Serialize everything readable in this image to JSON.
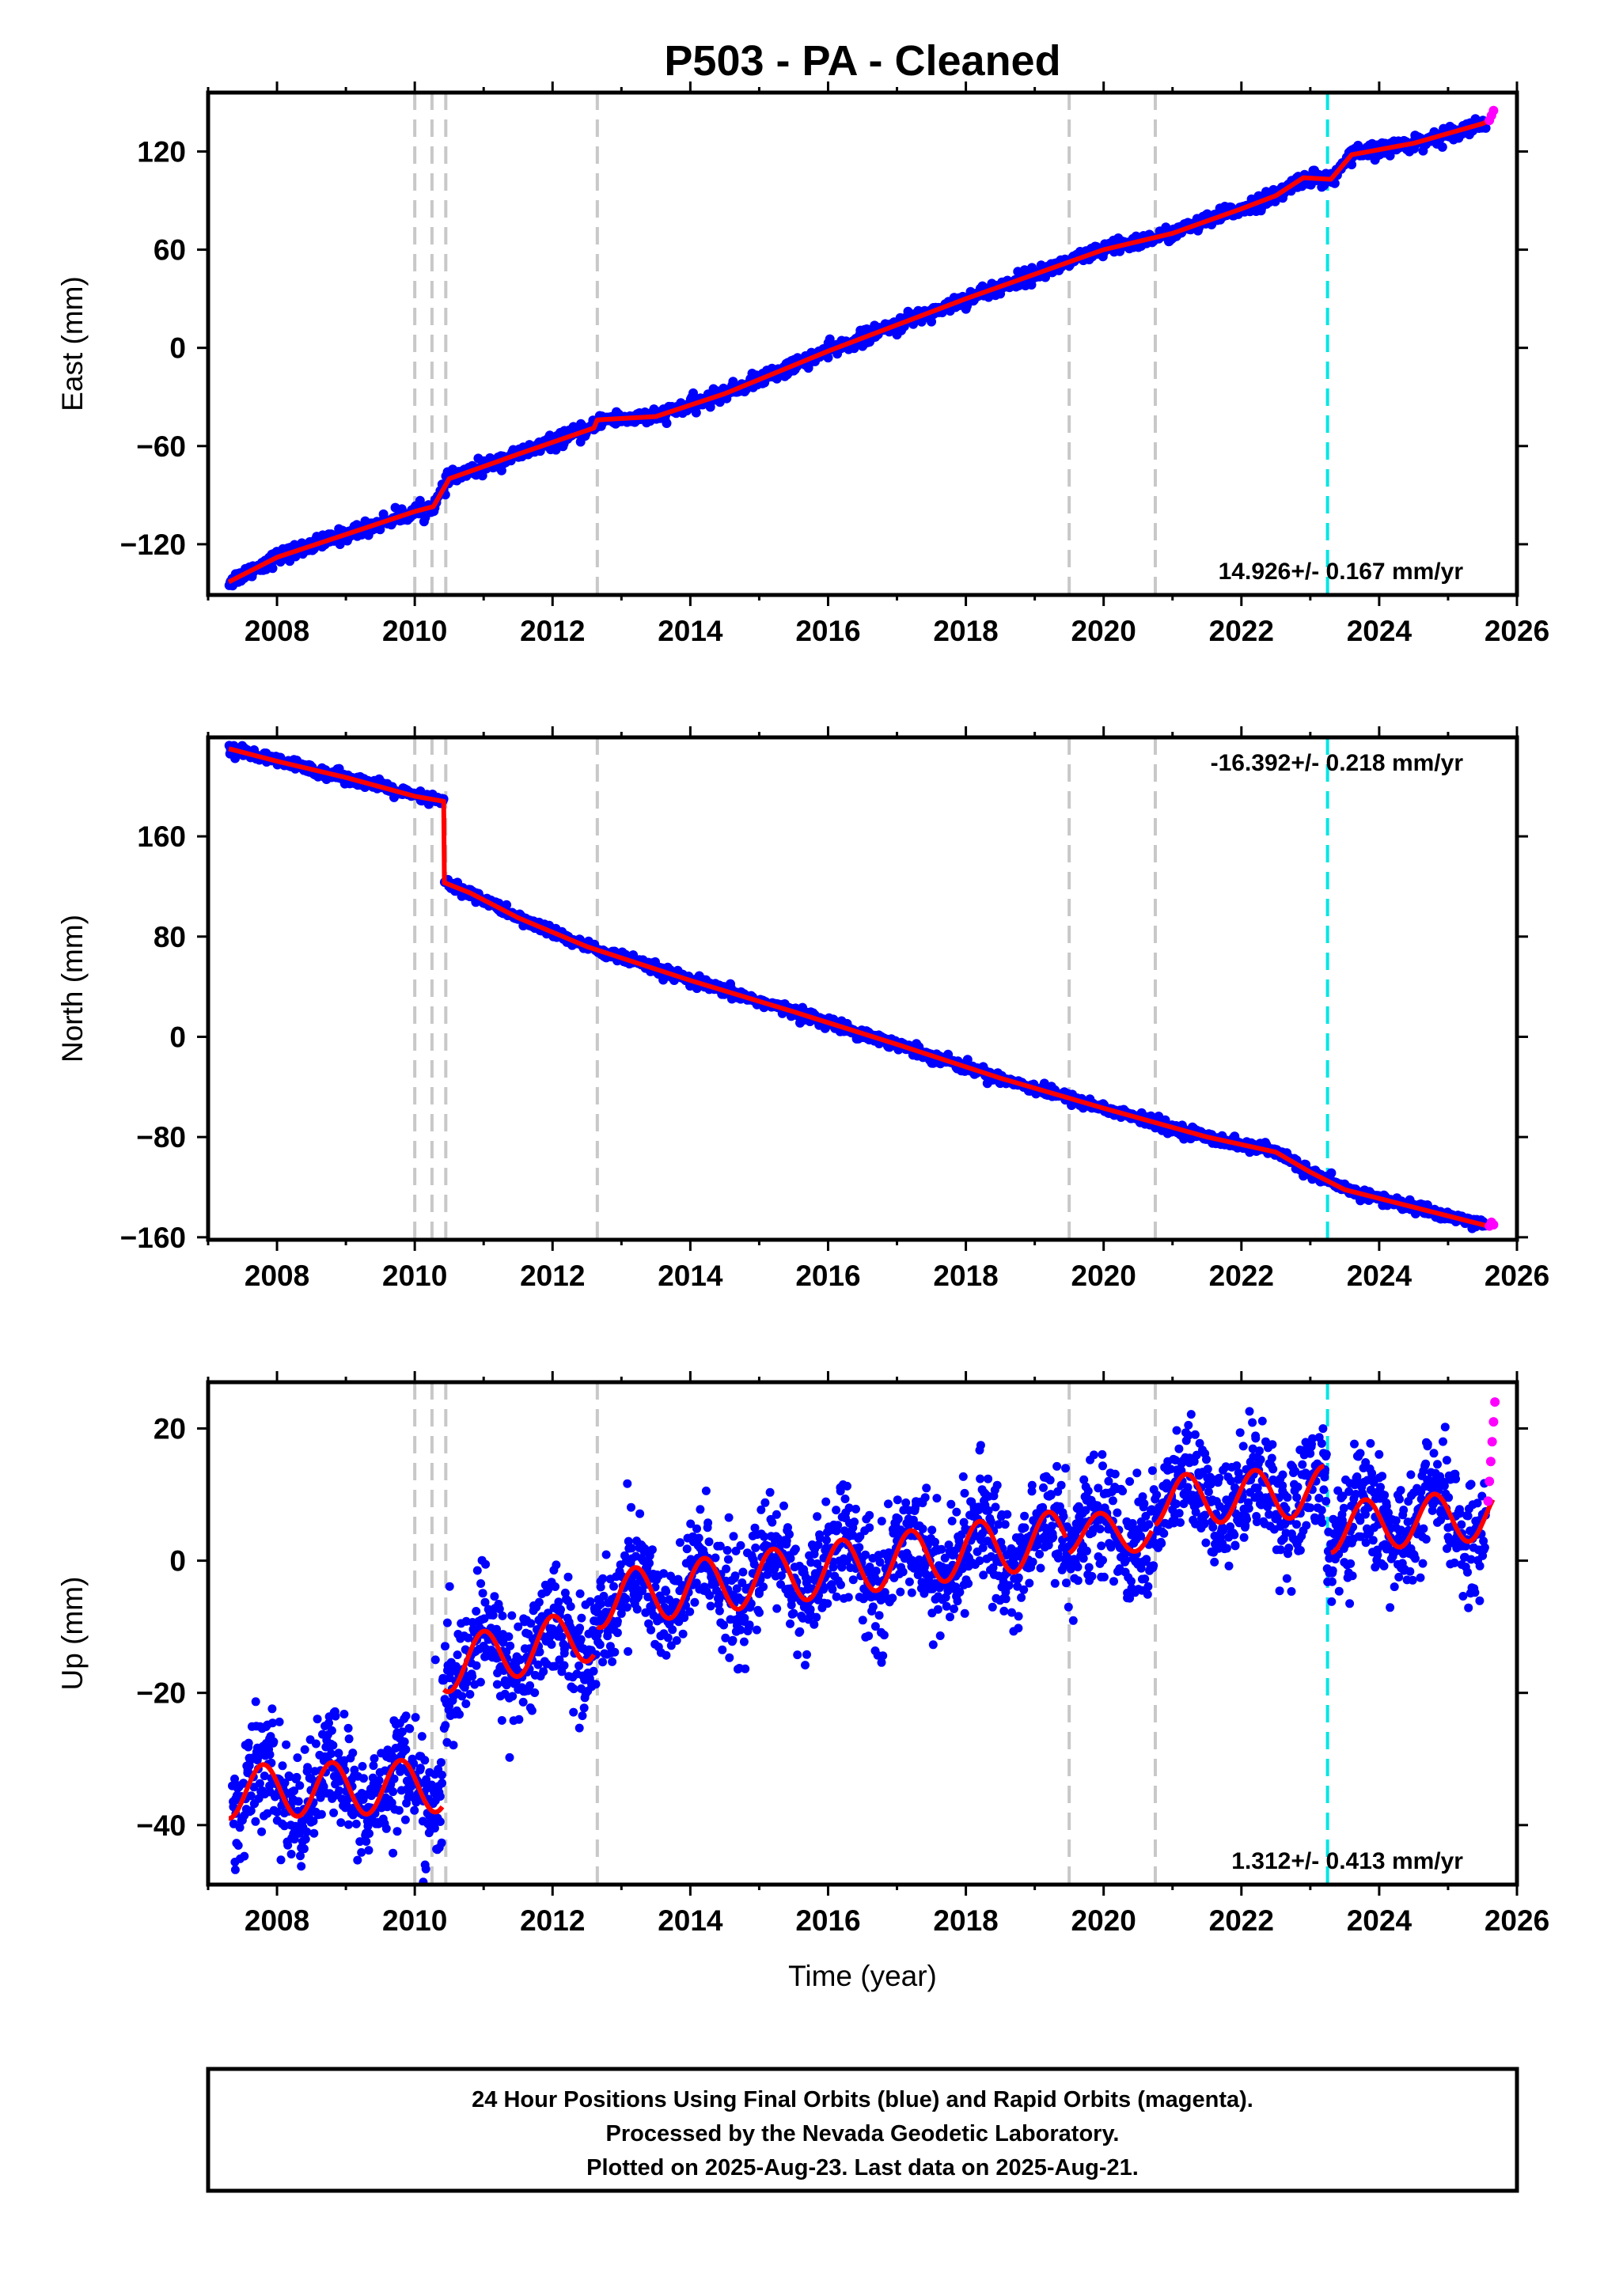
{
  "title": "P503  - PA - Cleaned",
  "colors": {
    "final_orbits": "#0000ff",
    "rapid_orbits": "#ff00ff",
    "model": "#ff0000",
    "event_line": "#c8c8c8",
    "antenna_change_line": "#00e5e5"
  },
  "chart_data": [
    {
      "type": "scatter",
      "panel": "east",
      "ylabel": "East (mm)",
      "xlabel": "",
      "xlim": [
        2007.0,
        2026.0
      ],
      "ylim": [
        -151,
        156
      ],
      "xticks": [
        2008,
        2010,
        2012,
        2014,
        2016,
        2018,
        2020,
        2022,
        2024,
        2026
      ],
      "yticks": [
        -120,
        -60,
        0,
        60,
        120
      ],
      "ytick_labels": [
        "−120",
        "−60",
        "0",
        "60",
        "120"
      ],
      "rate_label": "14.926+/- 0.167 mm/yr",
      "rate_position": "bottom-right",
      "event_lines": [
        2010.0,
        2010.25,
        2010.45,
        2012.65,
        2019.5,
        2020.75
      ],
      "antenna_change_lines": [
        2023.25
      ],
      "model": {
        "x": [
          2007.3,
          2008.0,
          2009.0,
          2010.0,
          2010.27,
          2010.5,
          2011.5,
          2012.6,
          2012.65,
          2013.5,
          2014.5,
          2016.0,
          2018.0,
          2020.0,
          2021.0,
          2022.0,
          2022.5,
          2022.9,
          2023.3,
          2023.6,
          2024.5,
          2025.5,
          2025.65
        ],
        "y": [
          -143,
          -128,
          -114,
          -100,
          -97,
          -80,
          -65,
          -49,
          -44,
          -42,
          -28,
          -2,
          30,
          60,
          70,
          85,
          93,
          104,
          103,
          118,
          125,
          137,
          140
        ]
      },
      "final_orbits": {
        "x": [
          2007.35,
          2007.6,
          2007.9,
          2008.2,
          2008.5,
          2008.8,
          2009.1,
          2009.4,
          2009.7,
          2010.0,
          2010.2,
          2010.4,
          2010.7,
          2011.0,
          2011.4,
          2011.8,
          2012.2,
          2012.6,
          2013.0,
          2013.4,
          2013.8,
          2014.2,
          2014.6,
          2015.0,
          2015.5,
          2016.0,
          2016.5,
          2017.0,
          2017.5,
          2018.0,
          2018.5,
          2019.0,
          2019.5,
          2020.0,
          2020.5,
          2021.0,
          2021.5,
          2022.0,
          2022.4,
          2023.0,
          2023.3,
          2023.6,
          2024.0,
          2024.5,
          2025.0,
          2025.5
        ],
        "y": [
          -141,
          -134,
          -128,
          -124,
          -119,
          -116,
          -113,
          -109,
          -104,
          -99,
          -96,
          -86,
          -75,
          -70,
          -66,
          -60,
          -55,
          -50,
          -45,
          -41,
          -36,
          -31,
          -27,
          -21,
          -14,
          -6,
          1,
          8,
          16,
          26,
          33,
          43,
          50,
          58,
          65,
          71,
          78,
          86,
          90,
          102,
          103,
          112,
          121,
          126,
          132,
          137
        ]
      },
      "rapid_orbits": {
        "x": [
          2025.6,
          2025.63,
          2025.66
        ],
        "y": [
          139,
          142,
          145
        ]
      }
    },
    {
      "type": "scatter",
      "panel": "north",
      "ylabel": "North (mm)",
      "xlabel": "",
      "xlim": [
        2007.0,
        2026.0
      ],
      "ylim": [
        -162,
        239
      ],
      "xticks": [
        2008,
        2010,
        2012,
        2014,
        2016,
        2018,
        2020,
        2022,
        2024,
        2026
      ],
      "yticks": [
        -160,
        -80,
        0,
        80,
        160
      ],
      "ytick_labels": [
        "−160",
        "−80",
        "0",
        "80",
        "160"
      ],
      "rate_label": "-16.392+/- 0.218 mm/yr",
      "rate_position": "top-right",
      "event_lines": [
        2010.0,
        2010.25,
        2010.45,
        2012.65,
        2019.5,
        2020.75
      ],
      "antenna_change_lines": [
        2023.25
      ],
      "model": {
        "x": [
          2007.3,
          2008.0,
          2009.0,
          2010.0,
          2010.42,
          2010.43,
          2010.8,
          2011.5,
          2012.5,
          2014.0,
          2015.5,
          2017.0,
          2018.5,
          2020.0,
          2021.5,
          2022.5,
          2023.0,
          2023.5,
          2024.5,
          2025.65
        ],
        "y": [
          230,
          220,
          207,
          192,
          188,
          123,
          115,
          95,
          72,
          45,
          20,
          -6,
          -33,
          -57,
          -80,
          -92,
          -108,
          -122,
          -136,
          -152
        ]
      },
      "final_orbits": {
        "x": [
          2007.35,
          2007.6,
          2008.0,
          2008.4,
          2008.8,
          2009.2,
          2009.6,
          2010.0,
          2010.3,
          2010.5,
          2010.8,
          2011.2,
          2011.6,
          2012.0,
          2012.4,
          2012.8,
          2013.2,
          2013.6,
          2014.0,
          2014.5,
          2015.0,
          2015.5,
          2016.0,
          2016.5,
          2017.0,
          2017.5,
          2018.0,
          2018.5,
          2019.0,
          2019.5,
          2020.0,
          2020.5,
          2021.0,
          2021.5,
          2022.0,
          2022.5,
          2023.0,
          2023.5,
          2024.0,
          2024.5,
          2025.0,
          2025.5
        ],
        "y": [
          231,
          226,
          219,
          217,
          211,
          206,
          202,
          193,
          188,
          120,
          112,
          103,
          93,
          83,
          76,
          66,
          60,
          52,
          44,
          37,
          28,
          19,
          10,
          1,
          -6,
          -14,
          -24,
          -33,
          -42,
          -49,
          -58,
          -66,
          -74,
          -80,
          -86,
          -92,
          -108,
          -118,
          -127,
          -134,
          -143,
          -151
        ]
      },
      "rapid_orbits": {
        "x": [
          2025.6,
          2025.63,
          2025.66
        ],
        "y": [
          -151,
          -148,
          -150
        ]
      }
    },
    {
      "type": "scatter",
      "panel": "up",
      "ylabel": "Up (mm)",
      "xlabel": "Time (year)",
      "xlim": [
        2007.0,
        2026.0
      ],
      "ylim": [
        -49,
        27
      ],
      "xticks": [
        2008,
        2010,
        2012,
        2014,
        2016,
        2018,
        2020,
        2022,
        2024,
        2026
      ],
      "yticks": [
        -40,
        -20,
        0,
        20
      ],
      "ytick_labels": [
        "−40",
        "−20",
        "0",
        "20"
      ],
      "rate_label": "1.312+/- 0.413 mm/yr",
      "rate_position": "bottom-right",
      "event_lines": [
        2010.0,
        2010.25,
        2010.45,
        2012.65,
        2019.5,
        2020.75
      ],
      "antenna_change_lines": [
        2023.25
      ],
      "model": {
        "segments": [
          {
            "from": 2007.3,
            "to": 2010.4,
            "base_start": -35,
            "base_end": -34,
            "amplitude": 4,
            "phase": 2007.55
          },
          {
            "from": 2010.42,
            "to": 2012.6,
            "base_start": -16,
            "base_end": -11,
            "amplitude": 4,
            "phase": 2010.75
          },
          {
            "from": 2012.65,
            "to": 2019.45,
            "base_start": -6,
            "base_end": 3.5,
            "amplitude": 4.2,
            "phase": 2012.95
          },
          {
            "from": 2019.5,
            "to": 2020.7,
            "base_start": 4,
            "base_end": 4.5,
            "amplitude": 3,
            "phase": 2019.7
          },
          {
            "from": 2020.75,
            "to": 2023.2,
            "base_start": 9,
            "base_end": 10.5,
            "amplitude": 3.8,
            "phase": 2020.95
          },
          {
            "from": 2023.3,
            "to": 2025.65,
            "base_start": 5,
            "base_end": 7,
            "amplitude": 3.8,
            "phase": 2023.55
          }
        ]
      },
      "final_orbits": {
        "x": [
          2007.4,
          2007.6,
          2007.9,
          2008.2,
          2008.5,
          2008.8,
          2009.1,
          2009.4,
          2009.7,
          2010.0,
          2010.3,
          2010.6,
          2010.9,
          2011.2,
          2011.5,
          2011.8,
          2012.1,
          2012.4,
          2012.7,
          2013.0,
          2013.4,
          2013.8,
          2014.2,
          2014.6,
          2015.0,
          2015.4,
          2015.8,
          2016.2,
          2016.6,
          2017.0,
          2017.4,
          2017.8,
          2018.2,
          2018.6,
          2019.0,
          2019.4,
          2019.8,
          2020.2,
          2020.6,
          2021.0,
          2021.4,
          2021.8,
          2022.2,
          2022.6,
          2023.0,
          2023.4,
          2023.8,
          2024.2,
          2024.6,
          2025.0,
          2025.4
        ],
        "y": [
          -36,
          -31,
          -35,
          -40,
          -33,
          -36,
          -38,
          -31,
          -33,
          -36,
          -15,
          -16,
          -12,
          -17,
          -10,
          -9,
          -15,
          -5,
          -4,
          -8,
          -2,
          -3,
          1,
          -3,
          -5,
          3,
          1,
          -1,
          5,
          3,
          -1,
          6,
          0,
          7,
          3,
          2,
          6,
          3,
          5,
          6,
          11,
          8,
          11,
          13,
          8,
          5,
          7,
          3,
          8,
          5,
          6
        ]
      },
      "rapid_orbits": {
        "x": [
          2025.58,
          2025.6,
          2025.62,
          2025.64,
          2025.66,
          2025.68
        ],
        "y": [
          9,
          12,
          15,
          18,
          21,
          24
        ]
      }
    }
  ],
  "footer": {
    "line1": "24 Hour Positions Using Final Orbits (blue) and Rapid Orbits (magenta).",
    "line2": "Processed by the Nevada Geodetic Laboratory.",
    "line3": "Plotted on 2025-Aug-23. Last data on 2025-Aug-21."
  }
}
